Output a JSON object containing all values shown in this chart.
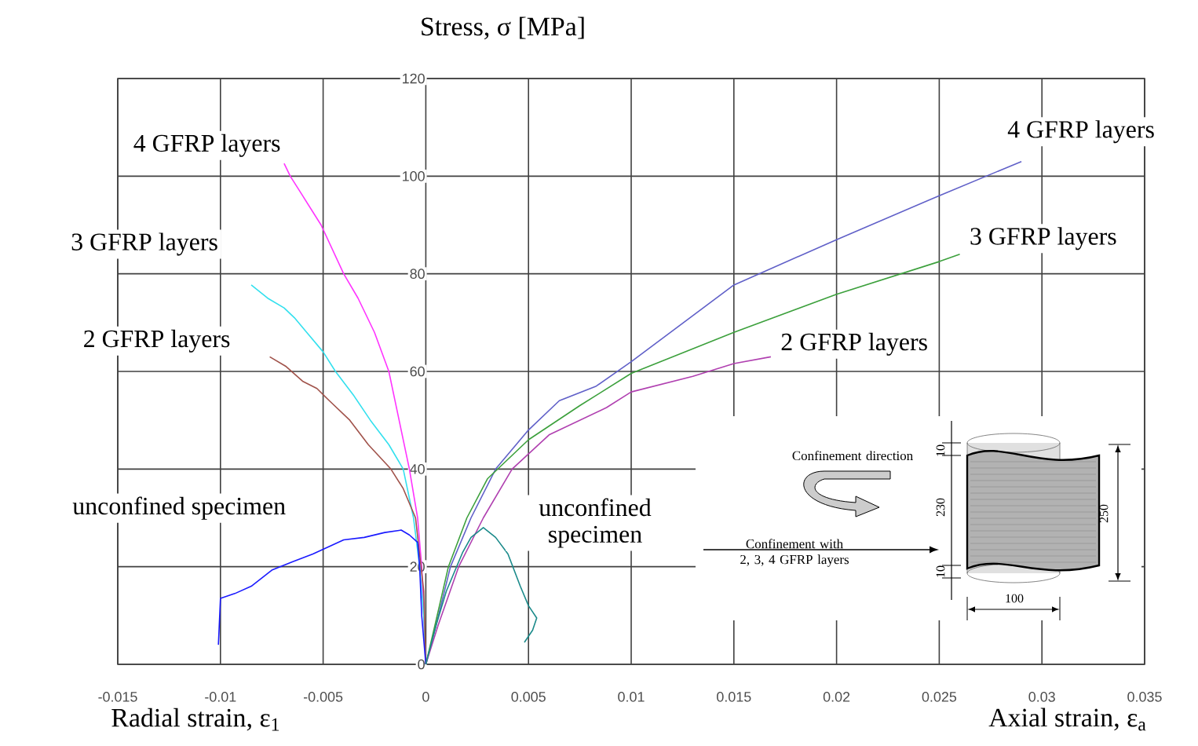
{
  "chart_data": {
    "type": "line",
    "ylabel": "Stress, σ [MPa]",
    "xlabel": "Radial strain, ε$_{1}$",
    "xlim": [
      -0.015,
      0.035
    ],
    "ylim": [
      0,
      120
    ],
    "xticks": [
      -0.015,
      -0.01,
      -0.005,
      0,
      0.005,
      0.01,
      0.015,
      0.02,
      0.025,
      0.03,
      0.035
    ],
    "yticks": [
      0,
      20,
      40,
      60,
      80,
      100,
      120
    ],
    "grid": true,
    "legend": false,
    "series": [
      {
        "name": "4 GFRP layers",
        "color": "#ff33ff",
        "x": [
          0,
          -0.0001,
          -0.0002,
          -0.0004,
          -0.0008,
          -0.0013,
          -0.0018,
          -0.0025,
          -0.0033,
          -0.004,
          -0.0051,
          -0.006,
          -0.0066,
          -0.0069
        ],
        "values": [
          0,
          10,
          20,
          30,
          40,
          50,
          60,
          68,
          75,
          80,
          90,
          96,
          100,
          102.6
        ]
      },
      {
        "name": "3 GFRP layers",
        "color": "#33e0ee",
        "x": [
          0,
          -0.0001,
          -0.0003,
          -0.0006,
          -0.0011,
          -0.0018,
          -0.0027,
          -0.0035,
          -0.0044,
          -0.005,
          -0.0058,
          -0.0064,
          -0.0069,
          -0.0077,
          -0.0085
        ],
        "values": [
          0,
          10,
          20,
          30,
          40,
          45,
          50,
          55,
          60,
          64,
          68,
          71,
          73,
          75,
          77.7
        ]
      },
      {
        "name": "2 GFRP layers",
        "color": "#a0524a",
        "x": [
          0,
          -0.0001,
          -0.0005,
          -0.0011,
          -0.0017,
          -0.0028,
          -0.0037,
          -0.0047,
          -0.0053,
          -0.006,
          -0.0068,
          -0.0076
        ],
        "values": [
          0,
          15,
          30,
          36,
          40,
          45,
          50,
          54,
          56.5,
          58,
          61,
          63
        ]
      },
      {
        "name": "unconfined specimen",
        "color": "#1a1aff",
        "x": [
          0,
          -0.0002,
          -0.0003,
          -0.0004,
          -0.0008,
          -0.0012,
          -0.002,
          -0.003,
          -0.004,
          -0.0055,
          -0.0065,
          -0.0075,
          -0.0085,
          -0.0093,
          -0.01,
          -0.0101
        ],
        "values": [
          0,
          10,
          20,
          25,
          26.5,
          27.5,
          27,
          26,
          25.5,
          22.6,
          21,
          19.3,
          16,
          14.5,
          13.5,
          4
        ]
      },
      {
        "name": "4 GFRP layers",
        "color": "#6060c8",
        "x": [
          0,
          0.0005,
          0.0012,
          0.0022,
          0.0034,
          0.005,
          0.0065,
          0.0083,
          0.01,
          0.015,
          0.02,
          0.025,
          0.029
        ],
        "values": [
          0,
          8,
          20,
          30,
          40,
          48,
          54,
          57,
          62,
          77.7,
          87,
          96,
          103
        ]
      },
      {
        "name": "3 GFRP layers",
        "color": "#3ca03c",
        "x": [
          0,
          0.0005,
          0.0011,
          0.002,
          0.003,
          0.005,
          0.0075,
          0.01,
          0.015,
          0.02,
          0.025,
          0.026
        ],
        "values": [
          0,
          9,
          20,
          30,
          38,
          46,
          53,
          59.6,
          68,
          75.8,
          82.5,
          84
        ]
      },
      {
        "name": "2 GFRP layers",
        "color": "#b040b0",
        "x": [
          0,
          0.0006,
          0.0016,
          0.0028,
          0.0042,
          0.006,
          0.0088,
          0.01,
          0.013,
          0.015,
          0.0168
        ],
        "values": [
          0,
          8,
          20,
          30,
          40,
          47,
          52.6,
          55.8,
          59,
          61.6,
          63
        ]
      },
      {
        "name": "unconfined specimen",
        "color": "#1a8a8a",
        "x": [
          0,
          0.0005,
          0.001,
          0.0018,
          0.0022,
          0.0028,
          0.0034,
          0.004,
          0.0046,
          0.005,
          0.0054,
          0.0052,
          0.0048
        ],
        "values": [
          0,
          8,
          15,
          23,
          26,
          28,
          26,
          22.6,
          16,
          12,
          9.5,
          7,
          4.5
        ]
      }
    ],
    "annotations": [
      "Axial strain, ε$_{a}$",
      "Confinement direction",
      "Confinement with 2, 3, 4 GFRP layers",
      "10",
      "230",
      "10",
      "250",
      "100"
    ]
  }
}
